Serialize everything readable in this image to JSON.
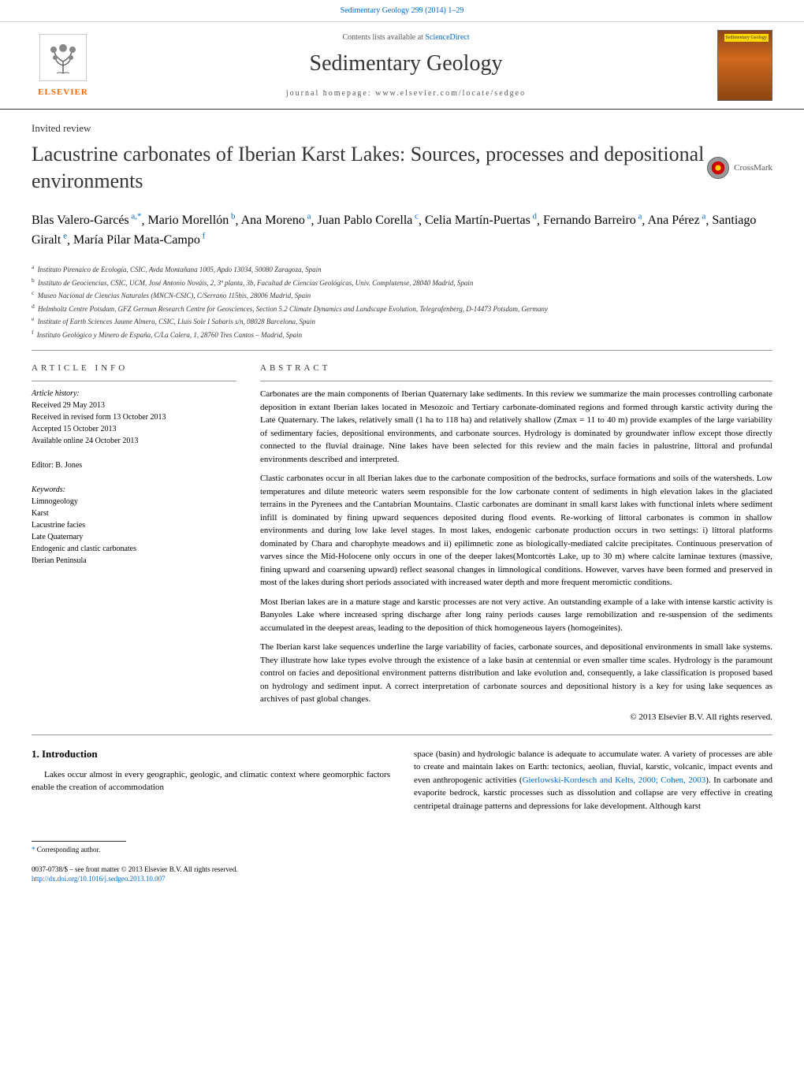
{
  "header": {
    "citation": "Sedimentary Geology 299 (2014) 1–29",
    "sciencedirect_prefix": "Contents lists available at ",
    "sciencedirect_link": "ScienceDirect",
    "journal_title": "Sedimentary Geology",
    "homepage": "journal homepage: www.elsevier.com/locate/sedgeo",
    "elsevier": "ELSEVIER",
    "cover_label": "Sedimentary Geology"
  },
  "article": {
    "type": "Invited review",
    "title": "Lacustrine carbonates of Iberian Karst Lakes: Sources, processes and depositional environments",
    "crossmark": "CrossMark"
  },
  "authors": {
    "list": [
      {
        "name": "Blas Valero-Garcés",
        "affil": "a,",
        "corr": "*"
      },
      {
        "name": "Mario Morellón",
        "affil": "b"
      },
      {
        "name": "Ana Moreno",
        "affil": "a"
      },
      {
        "name": "Juan Pablo Corella",
        "affil": "c"
      },
      {
        "name": "Celia Martín-Puertas",
        "affil": "d"
      },
      {
        "name": "Fernando Barreiro",
        "affil": "a"
      },
      {
        "name": "Ana Pérez",
        "affil": "a"
      },
      {
        "name": "Santiago Giralt",
        "affil": "e"
      },
      {
        "name": "María Pilar Mata-Campo",
        "affil": "f"
      }
    ]
  },
  "affiliations": [
    {
      "sup": "a",
      "text": "Instituto Pirenaico de Ecología, CSIC, Avda Montañana 1005, Apdo 13034, 50080 Zaragoza, Spain"
    },
    {
      "sup": "b",
      "text": "Instituto de Geociencias, CSIC, UCM, José Antonio Nováis, 2, 3ª planta, 3b, Facultad de Ciencias Geológicas, Univ. Complutense, 28040 Madrid, Spain"
    },
    {
      "sup": "c",
      "text": "Museo Nacional de Ciencias Naturales (MNCN-CSIC), C/Serrano 115bis, 28006 Madrid, Spain"
    },
    {
      "sup": "d",
      "text": "Helmholtz Centre Potsdam, GFZ German Research Centre for Geosciences, Section 5.2 Climate Dynamics and Landscape Evolution, Telegrafenberg, D-14473 Potsdam, Germany"
    },
    {
      "sup": "e",
      "text": "Institute of Earth Sciences Jaume Almera, CSIC, Lluis Sole I Sabaris s/n, 08028 Barcelona, Spain"
    },
    {
      "sup": "f",
      "text": "Instituto Geológico y Minero de España, C/La Calera, 1, 28760 Tres Cantos – Madrid, Spain"
    }
  ],
  "article_info": {
    "heading": "ARTICLE INFO",
    "history_label": "Article history:",
    "received": "Received 29 May 2013",
    "revised": "Received in revised form 13 October 2013",
    "accepted": "Accepted 15 October 2013",
    "available": "Available online 24 October 2013",
    "editor": "Editor: B. Jones",
    "keywords_label": "Keywords:",
    "keywords": [
      "Limnogeology",
      "Karst",
      "Lacustrine facies",
      "Late Quaternary",
      "Endogenic and clastic carbonates",
      "Iberian Peninsula"
    ]
  },
  "abstract": {
    "heading": "ABSTRACT",
    "paragraphs": [
      "Carbonates are the main components of Iberian Quaternary lake sediments. In this review we summarize the main processes controlling carbonate deposition in extant Iberian lakes located in Mesozoic and Tertiary carbonate-dominated regions and formed through karstic activity during the Late Quaternary. The lakes, relatively small (1 ha to 118 ha) and relatively shallow (Zmax = 11 to 40 m) provide examples of the large variability of sedimentary facies, depositional environments, and carbonate sources. Hydrology is dominated by groundwater inflow except those directly connected to the fluvial drainage. Nine lakes have been selected for this review and the main facies in palustrine, littoral and profundal environments described and interpreted.",
      "Clastic carbonates occur in all Iberian lakes due to the carbonate composition of the bedrocks, surface formations and soils of the watersheds. Low temperatures and dilute meteoric waters seem responsible for the low carbonate content of sediments in high elevation lakes in the glaciated terrains in the Pyrenees and the Cantabrian Mountains. Clastic carbonates are dominant in small karst lakes with functional inlets where sediment infill is dominated by fining upward sequences deposited during flood events. Re-working of littoral carbonates is common in shallow environments and during low lake level stages. In most lakes, endogenic carbonate production occurs in two settings: i) littoral platforms dominated by Chara and charophyte meadows and ii) epilimnetic zone as biologically-mediated calcite precipitates. Continuous preservation of varves since the Mid-Holocene only occurs in one of the deeper lakes(Montcortès Lake, up to 30 m) where calcite laminae textures (massive, fining upward and coarsening upward) reflect seasonal changes in limnological conditions. However, varves have been formed and preserved in most of the lakes during short periods associated with increased water depth and more frequent meromictic conditions.",
      "Most Iberian lakes are in a mature stage and karstic processes are not very active. An outstanding example of a lake with intense karstic activity is Banyoles Lake where increased spring discharge after long rainy periods causes large remobilization and re-suspension of the sediments accumulated in the deepest areas, leading to the deposition of thick homogeneous layers (homogeinites).",
      "The Iberian karst lake sequences underline the large variability of facies, carbonate sources, and depositional environments in small lake systems. They illustrate how lake types evolve through the existence of a lake basin at centennial or even smaller time scales. Hydrology is the paramount control on facies and depositional environment patterns distribution and lake evolution and, consequently, a lake classification is proposed based on hydrology and sediment input. A correct interpretation of carbonate sources and depositional history is a key for using lake sequences as archives of past global changes."
    ],
    "copyright": "© 2013 Elsevier B.V. All rights reserved."
  },
  "intro": {
    "heading": "1. Introduction",
    "left_text": "Lakes occur almost in every geographic, geologic, and climatic context where geomorphic factors enable the creation of accommodation",
    "right_text_1": "space (basin) and hydrologic balance is adequate to accumulate water. A variety of processes are able to create and maintain lakes on Earth: tectonics, aeolian, fluvial, karstic, volcanic, impact events and even anthropogenic activities (",
    "right_cite": "Gierlowski-Kordesch and Kelts, 2000; Cohen, 2003",
    "right_text_2": "). In carbonate and evaporite bedrock, karstic processes such as dissolution and collapse are very effective in creating centripetal drainage patterns and depressions for lake development. Although karst"
  },
  "footer": {
    "corr_star": "*",
    "corr_text": "Corresponding author.",
    "issn": "0037-0738/$ – see front matter © 2013 Elsevier B.V. All rights reserved.",
    "doi": "http://dx.doi.org/10.1016/j.sedgeo.2013.10.007"
  },
  "colors": {
    "link": "#0066cc",
    "elsevier_orange": "#ff6600",
    "text": "#000000",
    "muted": "#555555"
  }
}
